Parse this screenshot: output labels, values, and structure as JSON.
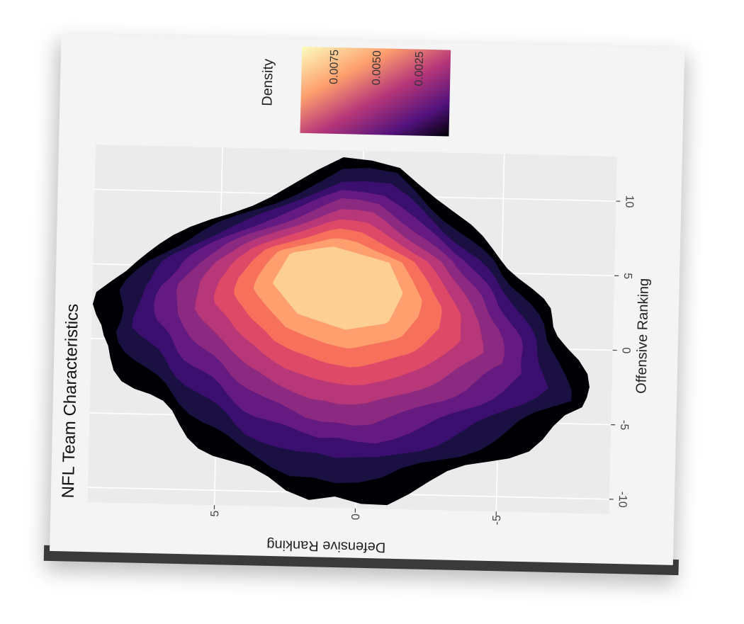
{
  "chart_data": {
    "type": "density_contour",
    "title": "NFL Team Characteristics",
    "xlabel": "Offensive Ranking",
    "ylabel": "Defensive Ranking",
    "xlim": [
      -11,
      13
    ],
    "ylim": [
      -9,
      9.5
    ],
    "x_ticks": [
      -10,
      -5,
      0,
      5,
      10
    ],
    "y_ticks": [
      -5,
      0,
      5
    ],
    "grid": true,
    "legend": {
      "title": "Density",
      "position": "top-right",
      "labels": [
        "0.0075",
        "0.0050",
        "0.0025"
      ]
    },
    "colormap": [
      "#000004",
      "#1a1042",
      "#3b0f70",
      "#641a80",
      "#8c2981",
      "#b73779",
      "#de4968",
      "#f7705c",
      "#fe9f6d",
      "#fecf92"
    ],
    "density_peak": {
      "x": 3,
      "y": 1
    },
    "outer_contour": [
      [
        -10.3,
        0
      ],
      [
        -10,
        2.2
      ],
      [
        -8,
        4.8
      ],
      [
        -5,
        6.6
      ],
      [
        -3,
        8
      ],
      [
        0,
        9.3
      ],
      [
        3,
        9.2
      ],
      [
        5.5,
        8
      ],
      [
        8,
        5.5
      ],
      [
        10,
        3
      ],
      [
        12.5,
        0.5
      ],
      [
        12,
        -1.5
      ],
      [
        9,
        -3.2
      ],
      [
        6,
        -5
      ],
      [
        3,
        -6.5
      ],
      [
        -1,
        -7.8
      ],
      [
        -4,
        -8.2
      ],
      [
        -6.5,
        -6
      ],
      [
        -9,
        -3
      ],
      [
        -10.3,
        -1
      ]
    ],
    "peak_contour": [
      [
        1,
        0.5
      ],
      [
        2,
        2.2
      ],
      [
        4,
        3.1
      ],
      [
        6,
        2.5
      ],
      [
        6.5,
        1
      ],
      [
        5.5,
        -1
      ],
      [
        3.5,
        -1.5
      ],
      [
        1.5,
        -1
      ]
    ]
  },
  "colors": {
    "panel": "#ebebeb",
    "grid": "#ffffff",
    "paper": "#f4f4f4"
  }
}
